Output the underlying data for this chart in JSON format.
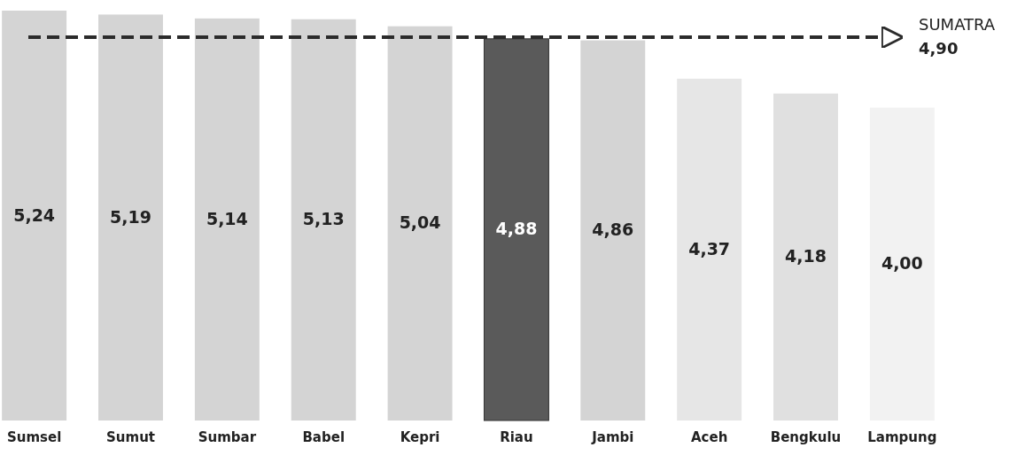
{
  "chart_data": {
    "type": "bar",
    "relative": false,
    "categories": [
      "Sumsel",
      "Sumut",
      "Sumbar",
      "Babel",
      "Kepri",
      "Riau",
      "Jambi",
      "Aceh",
      "Bengkulu",
      "Lampung"
    ],
    "values": [
      5.24,
      5.19,
      5.14,
      5.13,
      5.04,
      4.88,
      4.86,
      4.37,
      4.18,
      4.0
    ],
    "value_labels": [
      "5,24",
      "5,19",
      "5,14",
      "5,13",
      "5,04",
      "4,88",
      "4,86",
      "4,37",
      "4,18",
      "4,00"
    ],
    "colors": [
      "#d4d4d4",
      "#d4d4d4",
      "#d4d4d4",
      "#d4d4d4",
      "#d4d4d4",
      "#5a5a5a",
      "#d4d4d4",
      "#e6e6e6",
      "#e0e0e0",
      "#f2f2f2"
    ],
    "ref_lines": [
      {
        "axis": "y",
        "value": 4.9,
        "label": "SUMATRA 4,90",
        "color": "#2b2b2b",
        "line_style": "dashed"
      }
    ]
  }
}
